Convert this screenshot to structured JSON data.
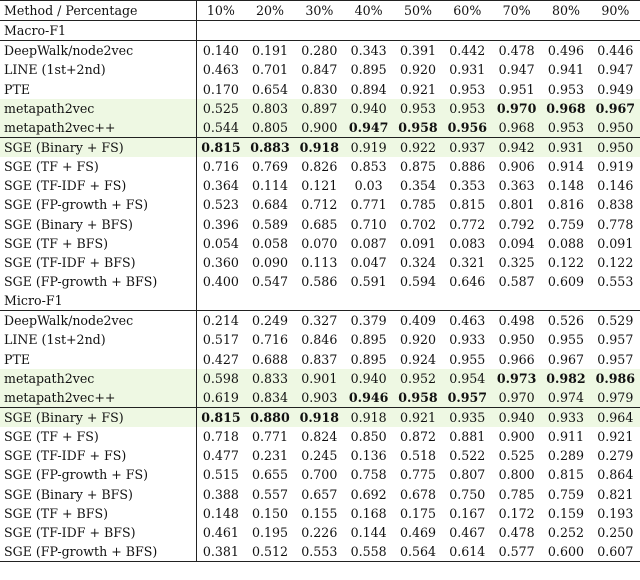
{
  "table": {
    "header": {
      "method": "Method / Percentage",
      "percentages": [
        "10%",
        "20%",
        "30%",
        "40%",
        "50%",
        "60%",
        "70%",
        "80%",
        "90%"
      ]
    },
    "sections": [
      {
        "title": "Macro-F1",
        "rows": [
          {
            "method": "DeepWalk/node2vec",
            "values": [
              "0.140",
              "0.191",
              "0.280",
              "0.343",
              "0.391",
              "0.442",
              "0.478",
              "0.496",
              "0.446"
            ],
            "bold": [],
            "highlight": false,
            "group_start": false
          },
          {
            "method": "LINE (1st+2nd)",
            "values": [
              "0.463",
              "0.701",
              "0.847",
              "0.895",
              "0.920",
              "0.931",
              "0.947",
              "0.941",
              "0.947"
            ],
            "bold": [],
            "highlight": false,
            "group_start": false
          },
          {
            "method": "PTE",
            "values": [
              "0.170",
              "0.654",
              "0.830",
              "0.894",
              "0.921",
              "0.953",
              "0.951",
              "0.953",
              "0.949"
            ],
            "bold": [],
            "highlight": false,
            "group_start": false
          },
          {
            "method": "metapath2vec",
            "values": [
              "0.525",
              "0.803",
              "0.897",
              "0.940",
              "0.953",
              "0.953",
              "0.970",
              "0.968",
              "0.967"
            ],
            "bold": [
              6,
              7,
              8
            ],
            "highlight": true,
            "group_start": false
          },
          {
            "method": "metapath2vec++",
            "values": [
              "0.544",
              "0.805",
              "0.900",
              "0.947",
              "0.958",
              "0.956",
              "0.968",
              "0.953",
              "0.950"
            ],
            "bold": [
              3,
              4,
              5
            ],
            "highlight": true,
            "group_start": false
          },
          {
            "method": "SGE (Binary + FS)",
            "values": [
              "0.815",
              "0.883",
              "0.918",
              "0.919",
              "0.922",
              "0.937",
              "0.942",
              "0.931",
              "0.950"
            ],
            "bold": [
              0,
              1,
              2
            ],
            "highlight": true,
            "group_start": true
          },
          {
            "method": "SGE (TF + FS)",
            "values": [
              "0.716",
              "0.769",
              "0.826",
              "0.853",
              "0.875",
              "0.886",
              "0.906",
              "0.914",
              "0.919"
            ],
            "bold": [],
            "highlight": false,
            "group_start": false
          },
          {
            "method": "SGE (TF-IDF + FS)",
            "values": [
              "0.364",
              "0.114",
              "0.121",
              "0.03",
              "0.354",
              "0.353",
              "0.363",
              "0.148",
              "0.146"
            ],
            "bold": [],
            "highlight": false,
            "group_start": false
          },
          {
            "method": "SGE (FP-growth + FS)",
            "values": [
              "0.523",
              "0.684",
              "0.712",
              "0.771",
              "0.785",
              "0.815",
              "0.801",
              "0.816",
              "0.838"
            ],
            "bold": [],
            "highlight": false,
            "group_start": false
          },
          {
            "method": "SGE (Binary + BFS)",
            "values": [
              "0.396",
              "0.589",
              "0.685",
              "0.710",
              "0.702",
              "0.772",
              "0.792",
              "0.759",
              "0.778"
            ],
            "bold": [],
            "highlight": false,
            "group_start": false
          },
          {
            "method": "SGE (TF + BFS)",
            "values": [
              "0.054",
              "0.058",
              "0.070",
              "0.087",
              "0.091",
              "0.083",
              "0.094",
              "0.088",
              "0.091"
            ],
            "bold": [],
            "highlight": false,
            "group_start": false
          },
          {
            "method": "SGE (TF-IDF + BFS)",
            "values": [
              "0.360",
              "0.090",
              "0.113",
              "0.047",
              "0.324",
              "0.321",
              "0.325",
              "0.122",
              "0.122"
            ],
            "bold": [],
            "highlight": false,
            "group_start": false
          },
          {
            "method": "SGE (FP-growth + BFS)",
            "values": [
              "0.400",
              "0.547",
              "0.586",
              "0.591",
              "0.594",
              "0.646",
              "0.587",
              "0.609",
              "0.553"
            ],
            "bold": [],
            "highlight": false,
            "group_start": false
          }
        ]
      },
      {
        "title": "Micro-F1",
        "rows": [
          {
            "method": "DeepWalk/node2vec",
            "values": [
              "0.214",
              "0.249",
              "0.327",
              "0.379",
              "0.409",
              "0.463",
              "0.498",
              "0.526",
              "0.529"
            ],
            "bold": [],
            "highlight": false,
            "group_start": false
          },
          {
            "method": "LINE (1st+2nd)",
            "values": [
              "0.517",
              "0.716",
              "0.846",
              "0.895",
              "0.920",
              "0.933",
              "0.950",
              "0.955",
              "0.957"
            ],
            "bold": [],
            "highlight": false,
            "group_start": false
          },
          {
            "method": "PTE",
            "values": [
              "0.427",
              "0.688",
              "0.837",
              "0.895",
              "0.924",
              "0.955",
              "0.966",
              "0.967",
              "0.957"
            ],
            "bold": [],
            "highlight": false,
            "group_start": false
          },
          {
            "method": "metapath2vec",
            "values": [
              "0.598",
              "0.833",
              "0.901",
              "0.940",
              "0.952",
              "0.954",
              "0.973",
              "0.982",
              "0.986"
            ],
            "bold": [
              6,
              7,
              8
            ],
            "highlight": true,
            "group_start": false
          },
          {
            "method": "metapath2vec++",
            "values": [
              "0.619",
              "0.834",
              "0.903",
              "0.946",
              "0.958",
              "0.957",
              "0.970",
              "0.974",
              "0.979"
            ],
            "bold": [
              3,
              4,
              5
            ],
            "highlight": true,
            "group_start": false
          },
          {
            "method": "SGE (Binary + FS)",
            "values": [
              "0.815",
              "0.880",
              "0.918",
              "0.918",
              "0.921",
              "0.935",
              "0.940",
              "0.933",
              "0.964"
            ],
            "bold": [
              0,
              1,
              2
            ],
            "highlight": true,
            "group_start": true
          },
          {
            "method": "SGE (TF + FS)",
            "values": [
              "0.718",
              "0.771",
              "0.824",
              "0.850",
              "0.872",
              "0.881",
              "0.900",
              "0.911",
              "0.921"
            ],
            "bold": [],
            "highlight": false,
            "group_start": false
          },
          {
            "method": "SGE (TF-IDF + FS)",
            "values": [
              "0.477",
              "0.231",
              "0.245",
              "0.136",
              "0.518",
              "0.522",
              "0.525",
              "0.289",
              "0.279"
            ],
            "bold": [],
            "highlight": false,
            "group_start": false
          },
          {
            "method": "SGE (FP-growth + FS)",
            "values": [
              "0.515",
              "0.655",
              "0.700",
              "0.758",
              "0.775",
              "0.807",
              "0.800",
              "0.815",
              "0.864"
            ],
            "bold": [],
            "highlight": false,
            "group_start": false
          },
          {
            "method": "SGE (Binary + BFS)",
            "values": [
              "0.388",
              "0.557",
              "0.657",
              "0.692",
              "0.678",
              "0.750",
              "0.785",
              "0.759",
              "0.821"
            ],
            "bold": [],
            "highlight": false,
            "group_start": false
          },
          {
            "method": "SGE (TF + BFS)",
            "values": [
              "0.148",
              "0.150",
              "0.155",
              "0.168",
              "0.175",
              "0.167",
              "0.172",
              "0.159",
              "0.193"
            ],
            "bold": [],
            "highlight": false,
            "group_start": false
          },
          {
            "method": "SGE (TF-IDF + BFS)",
            "values": [
              "0.461",
              "0.195",
              "0.226",
              "0.144",
              "0.469",
              "0.467",
              "0.478",
              "0.252",
              "0.250"
            ],
            "bold": [],
            "highlight": false,
            "group_start": false
          },
          {
            "method": "SGE (FP-growth + BFS)",
            "values": [
              "0.381",
              "0.512",
              "0.553",
              "0.558",
              "0.564",
              "0.614",
              "0.577",
              "0.600",
              "0.607"
            ],
            "bold": [],
            "highlight": false,
            "group_start": false
          }
        ]
      }
    ]
  },
  "colors": {
    "highlight_background": "#eef8e3",
    "rule_color": "#222222"
  }
}
